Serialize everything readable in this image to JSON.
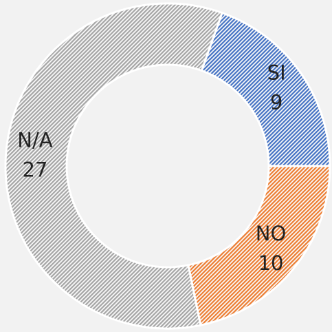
{
  "chart_data": {
    "type": "donut",
    "categories": [
      "SI",
      "NO",
      "N/A"
    ],
    "values": [
      9,
      10,
      27
    ],
    "colors": [
      "#4472c4",
      "#ed7d31",
      "#a5a5a5"
    ]
  }
}
